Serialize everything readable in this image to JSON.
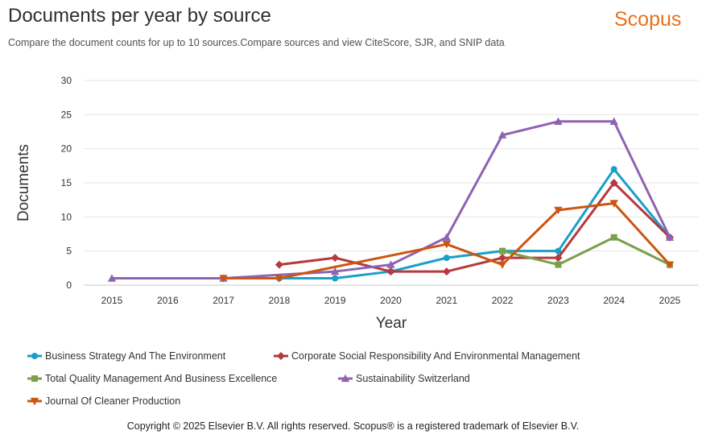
{
  "header": {
    "title": "Documents per year by source",
    "brand": "Scopus",
    "subtitle": "Compare the document counts for up to 10 sources.Compare sources and view CiteScore, SJR, and SNIP data"
  },
  "footer": {
    "copyright": "Copyright © 2025 Elsevier B.V. All rights reserved. Scopus® is a registered trademark of Elsevier B.V."
  },
  "chart_data": {
    "type": "line",
    "title": "Documents per year by source",
    "xlabel": "Year",
    "ylabel": "Documents",
    "x": [
      2015,
      2016,
      2017,
      2018,
      2019,
      2020,
      2021,
      2022,
      2023,
      2024,
      2025
    ],
    "ylim": [
      0,
      30
    ],
    "yticks": [
      0,
      5,
      10,
      15,
      20,
      25,
      30
    ],
    "grid": true,
    "legend_position": "bottom",
    "series": [
      {
        "name": "Business Strategy And The Environment",
        "color": "#1a9fc9",
        "marker": "circle",
        "values": [
          null,
          null,
          1,
          1,
          1,
          2,
          4,
          5,
          5,
          17,
          7
        ]
      },
      {
        "name": "Corporate Social Responsibility And Environmental Management",
        "color": "#b5393e",
        "marker": "diamond",
        "values": [
          null,
          null,
          null,
          3,
          4,
          2,
          2,
          4,
          4,
          15,
          7
        ]
      },
      {
        "name": "Total Quality Management And Business Excellence",
        "color": "#7aa04a",
        "marker": "square",
        "values": [
          null,
          null,
          null,
          null,
          null,
          null,
          null,
          5,
          3,
          7,
          3
        ]
      },
      {
        "name": "Sustainability Switzerland",
        "color": "#8f63b2",
        "marker": "triangle-up",
        "values": [
          1,
          null,
          1,
          null,
          2,
          3,
          7,
          22,
          24,
          24,
          7
        ]
      },
      {
        "name": "Journal Of Cleaner Production",
        "color": "#cc5510",
        "marker": "triangle-down",
        "values": [
          null,
          null,
          1,
          1,
          null,
          null,
          6,
          3,
          11,
          12,
          3
        ]
      }
    ]
  }
}
